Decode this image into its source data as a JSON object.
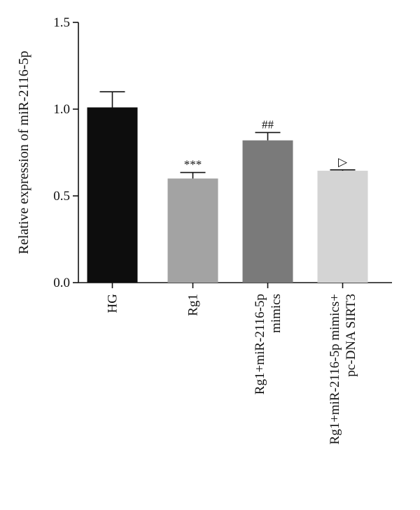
{
  "chart_data": {
    "type": "bar",
    "title": "",
    "xlabel": "",
    "ylabel": "Relative expression of miR-2116-5p",
    "ylim": [
      0,
      1.5
    ],
    "yticks": [
      "0.0",
      "0.5",
      "1.0",
      "1.5"
    ],
    "grid": false,
    "categories": [
      [
        "HG"
      ],
      [
        "Rg1"
      ],
      [
        "Rg1+miR-2116-5p",
        "mimics"
      ],
      [
        "Rg1+miR-2116-5p mimics+",
        "pc-DNA SIRT3"
      ]
    ],
    "values": [
      1.01,
      0.6,
      0.82,
      0.645
    ],
    "errors": [
      0.09,
      0.035,
      0.045,
      0.005
    ],
    "bar_colors": [
      "#0d0d0d",
      "#a3a3a3",
      "#7a7a7a",
      "#d4d4d4"
    ],
    "significance": [
      "",
      "***",
      "##",
      "▷"
    ]
  }
}
